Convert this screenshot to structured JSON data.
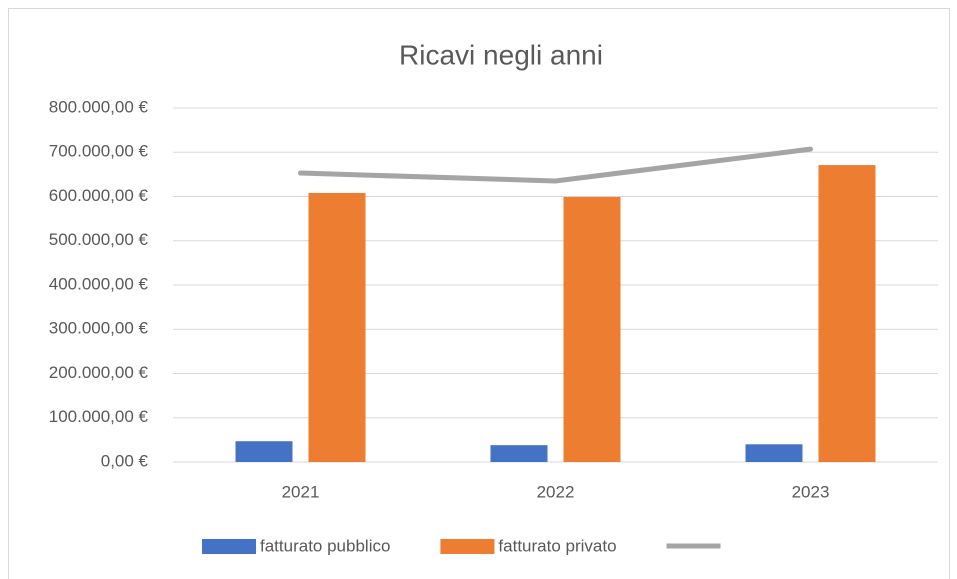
{
  "chart_data": {
    "type": "bar-line",
    "title": "Ricavi negli anni",
    "categories": [
      "2021",
      "2022",
      "2023"
    ],
    "series": [
      {
        "name": "fatturato pubblico",
        "color": "#4472c4",
        "type": "bar",
        "values": [
          47000,
          38000,
          40000
        ]
      },
      {
        "name": "fatturato privato",
        "color": "#ed7d31",
        "type": "bar",
        "values": [
          608000,
          599000,
          671000
        ]
      },
      {
        "color": "#a5a5a5",
        "type": "line",
        "values": [
          653000,
          635000,
          707000
        ]
      }
    ],
    "ylim": [
      0,
      800000
    ],
    "yticks": [
      {
        "value": 0,
        "label": "0,00 €"
      },
      {
        "value": 100000,
        "label": "100.000,00 €"
      },
      {
        "value": 200000,
        "label": "200.000,00 €"
      },
      {
        "value": 300000,
        "label": "300.000,00 €"
      },
      {
        "value": 400000,
        "label": "400.000,00 €"
      },
      {
        "value": 500000,
        "label": "500.000,00 €"
      },
      {
        "value": 600000,
        "label": "600.000,00 €"
      },
      {
        "value": 700000,
        "label": "700.000,00 €"
      },
      {
        "value": 800000,
        "label": "800.000,00 €"
      }
    ],
    "grid": true,
    "legend": "bottom"
  }
}
